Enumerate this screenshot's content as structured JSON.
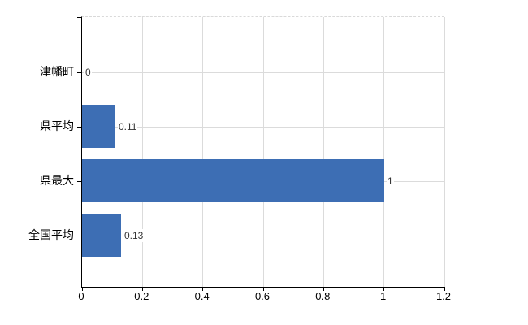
{
  "chart_data": {
    "type": "bar",
    "orientation": "horizontal",
    "title": "",
    "categories": [
      "津幡町",
      "県平均",
      "県最大",
      "全国平均"
    ],
    "values": [
      0,
      0.11,
      1,
      0.13
    ],
    "data_labels": [
      "0",
      "0.11",
      "1",
      "0.13"
    ],
    "xlim": [
      0,
      1.2
    ],
    "x_ticks": [
      0,
      0.2,
      0.4,
      0.6,
      0.8,
      1,
      1.2
    ],
    "x_tick_labels": [
      "0",
      "0.2",
      "0.4",
      "0.6",
      "0.8",
      "1",
      "1.2"
    ],
    "grid": true,
    "legend": false,
    "colors": {
      "bar": "#3d6eb4",
      "grid": "#dbdbdb",
      "axis": "#000000",
      "data_label": "#333333",
      "tick_label": "#000000"
    }
  }
}
